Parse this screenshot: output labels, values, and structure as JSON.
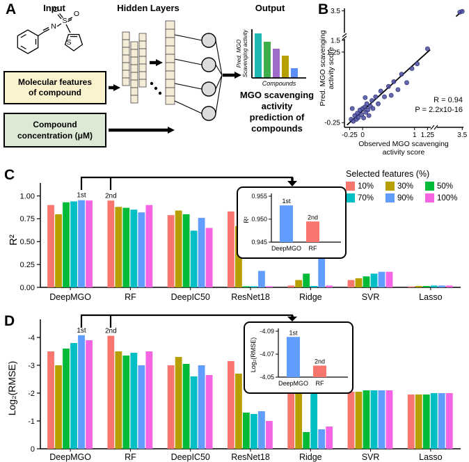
{
  "panels": {
    "a": "A",
    "b": "B",
    "c": "C",
    "d": "D"
  },
  "panel_a": {
    "headings": {
      "input": "Input",
      "hidden_layers": "Hidden Layers",
      "output": "Output"
    },
    "molecule": {
      "atoms": [
        "N",
        "S",
        "O",
        "O",
        "S"
      ]
    },
    "feature_box": {
      "line1": "Molecular features",
      "line2": "of compound",
      "fill": "#FBF2CE"
    },
    "concentration_box": {
      "line1": "Compound",
      "line2": "concentration (μM)",
      "fill": "#DCE9D5"
    },
    "output_chart": {
      "ylabel_line1": "Pred. MGO",
      "ylabel_line2": "Scavenging activity",
      "xlabel": "Compounds",
      "bars": [
        {
          "color": "#1FB8B4",
          "h": 64
        },
        {
          "color": "#3EB049",
          "h": 52
        },
        {
          "color": "#9E6BC9",
          "h": 42
        },
        {
          "color": "#B79F00",
          "h": 32
        },
        {
          "color": "#5C8DF6",
          "h": 14
        }
      ]
    },
    "caption_lines": [
      "MGO scavenging",
      "activity",
      "prediction of",
      "compounds"
    ]
  },
  "legend": {
    "title": "Selected features (%)",
    "items": [
      {
        "label": "10%",
        "color": "#F8766D"
      },
      {
        "label": "30%",
        "color": "#B79F00"
      },
      {
        "label": "50%",
        "color": "#00BA38"
      },
      {
        "label": "70%",
        "color": "#00BFC4"
      },
      {
        "label": "90%",
        "color": "#619CFF"
      },
      {
        "label": "100%",
        "color": "#F564E3"
      }
    ]
  },
  "chart_data": [
    {
      "id": "b_scatter",
      "type": "scatter",
      "xlabel_lines": [
        "Observed MGO scavenging",
        "activity score"
      ],
      "ylabel_lines": [
        "Pred. MGO scavenging",
        "activity score"
      ],
      "x_ticks": [
        {
          "v": -0.25,
          "label": "-0.25"
        },
        {
          "v": 0,
          "label": "0"
        },
        {
          "v": 1,
          "label": "1"
        },
        {
          "v": 1.25,
          "label": "1.25"
        },
        {
          "v": 3.5,
          "label": "3.5"
        }
      ],
      "y_ticks": [
        {
          "v": -0.25,
          "label": "-0.25"
        },
        {
          "v": 1.25,
          "label": "1.25"
        },
        {
          "v": 1.5,
          "label": "1.5"
        },
        {
          "v": 3.5,
          "label": "3.5"
        }
      ],
      "axis_break": true,
      "annotations": [
        "R = 0.94",
        "P = 2.2x10-16"
      ],
      "point_color": "#4A4E9D",
      "points": [
        [
          -0.22,
          -0.18
        ],
        [
          -0.18,
          -0.22
        ],
        [
          -0.15,
          -0.1
        ],
        [
          -0.12,
          -0.18
        ],
        [
          -0.1,
          -0.05
        ],
        [
          -0.08,
          -0.14
        ],
        [
          -0.05,
          0.02
        ],
        [
          -0.02,
          -0.08
        ],
        [
          0,
          0.05
        ],
        [
          0.02,
          -0.15
        ],
        [
          0.04,
          0.08
        ],
        [
          0.06,
          -0.03
        ],
        [
          0.08,
          0.15
        ],
        [
          0.1,
          0.02
        ],
        [
          0.12,
          -0.1
        ],
        [
          0.15,
          0.1
        ],
        [
          0.18,
          0.22
        ],
        [
          0.2,
          0.05
        ],
        [
          0.25,
          0.3
        ],
        [
          0.3,
          0.15
        ],
        [
          -0.2,
          0.05
        ],
        [
          0.05,
          0.28
        ],
        [
          0.35,
          0.42
        ],
        [
          0.42,
          0.3
        ],
        [
          0.5,
          0.52
        ],
        [
          0.55,
          0.33
        ],
        [
          0.6,
          0.62
        ],
        [
          0.68,
          0.45
        ],
        [
          0.75,
          0.78
        ],
        [
          0.85,
          0.6
        ],
        [
          0.95,
          0.9
        ],
        [
          1.05,
          1.0
        ],
        [
          1.25,
          1.32
        ],
        [
          3.3,
          3.38
        ],
        [
          3.5,
          3.45
        ]
      ]
    },
    {
      "id": "c_bars",
      "type": "bar",
      "ylabel": "R²",
      "categories": [
        "DeepMGO",
        "RF",
        "DeepIC50",
        "ResNet18",
        "Ridge",
        "SVR",
        "Lasso"
      ],
      "ylim": [
        0,
        1.05
      ],
      "y_ticks": [
        0,
        0.25,
        0.5,
        0.75,
        1
      ],
      "y_tick_labels": [
        "0.00",
        "0.25",
        "0.50",
        "0.75",
        "1.00"
      ],
      "series": [
        {
          "name": "10%",
          "color": "#F8766D",
          "values": [
            0.9,
            0.949,
            0.79,
            0.83,
            0.02,
            0.08,
            0.01
          ]
        },
        {
          "name": "30%",
          "color": "#B79F00",
          "values": [
            0.8,
            0.88,
            0.84,
            0.67,
            0.08,
            0.1,
            0.015
          ]
        },
        {
          "name": "50%",
          "color": "#00BA38",
          "values": [
            0.93,
            0.87,
            0.8,
            0.012,
            0.15,
            0.12,
            0.015
          ]
        },
        {
          "name": "70%",
          "color": "#00BFC4",
          "values": [
            0.94,
            0.85,
            0.62,
            0.012,
            0.015,
            0.15,
            0.02
          ]
        },
        {
          "name": "90%",
          "color": "#619CFF",
          "values": [
            0.953,
            0.82,
            0.76,
            0.18,
            0.38,
            0.17,
            0.02
          ]
        },
        {
          "name": "100%",
          "color": "#F564E3",
          "values": [
            0.95,
            0.9,
            0.65,
            0.012,
            0.02,
            0.17,
            0.02
          ]
        }
      ],
      "bar_labels": [
        {
          "cat": 0,
          "series": 4,
          "text": "1st"
        },
        {
          "cat": 1,
          "series": 0,
          "text": "2nd"
        }
      ]
    },
    {
      "id": "c_inset",
      "type": "bar",
      "ylabel": "R²",
      "categories": [
        "DeepMGO",
        "RF"
      ],
      "ylim": [
        0.945,
        0.955
      ],
      "y_ticks": [
        0.945,
        0.95,
        0.955
      ],
      "y_tick_labels": [
        "0.945",
        "0.950",
        "0.955"
      ],
      "values": [
        0.953,
        0.9495
      ],
      "colors": [
        "#619CFF",
        "#F8766D"
      ],
      "labels": [
        "1st",
        "2nd"
      ]
    },
    {
      "id": "d_bars",
      "type": "bar",
      "ylabel": "Log₂(RMSE)",
      "categories": [
        "DeepMGO",
        "RF",
        "DeepIC50",
        "ResNet18",
        "Ridge",
        "SVR",
        "Lasso"
      ],
      "ylim": [
        0,
        -4.35
      ],
      "y_ticks": [
        0,
        -1,
        -2,
        -3,
        -4
      ],
      "y_tick_labels": [
        "0",
        "-1",
        "-2",
        "-3",
        "-4"
      ],
      "series": [
        {
          "name": "10%",
          "color": "#F8766D",
          "values": [
            -3.5,
            -4.06,
            -3.0,
            -3.15,
            -2.05,
            -2.05,
            -1.95
          ]
        },
        {
          "name": "30%",
          "color": "#B79F00",
          "values": [
            -3.0,
            -3.5,
            -3.3,
            -2.7,
            -2.1,
            -2.05,
            -1.95
          ]
        },
        {
          "name": "50%",
          "color": "#00BA38",
          "values": [
            -3.6,
            -3.35,
            -3.05,
            -1.3,
            -0.6,
            -2.1,
            -1.95
          ]
        },
        {
          "name": "70%",
          "color": "#00BFC4",
          "values": [
            -3.8,
            -3.45,
            -2.6,
            -1.25,
            -2.0,
            -2.1,
            -2.0
          ]
        },
        {
          "name": "90%",
          "color": "#619CFF",
          "values": [
            -4.08,
            -3.0,
            -3.0,
            -1.35,
            -0.7,
            -2.1,
            -2.0
          ]
        },
        {
          "name": "100%",
          "color": "#F564E3",
          "values": [
            -3.9,
            -3.5,
            -2.65,
            -1.0,
            -0.8,
            -2.1,
            -2.0
          ]
        }
      ],
      "bar_labels": [
        {
          "cat": 0,
          "series": 4,
          "text": "1st"
        },
        {
          "cat": 1,
          "series": 0,
          "text": "2nd"
        }
      ]
    },
    {
      "id": "d_inset",
      "type": "bar",
      "ylabel": "Log₂(RMSE)",
      "categories": [
        "DeepMGO",
        "RF"
      ],
      "ylim": [
        -4.05,
        -4.09
      ],
      "y_ticks": [
        -4.05,
        -4.07,
        -4.09
      ],
      "y_tick_labels": [
        "-4.05",
        "-4.07",
        "-4.09"
      ],
      "values": [
        -4.085,
        -4.06
      ],
      "colors": [
        "#619CFF",
        "#F8766D"
      ],
      "labels": [
        "1st",
        "2nd"
      ]
    }
  ]
}
